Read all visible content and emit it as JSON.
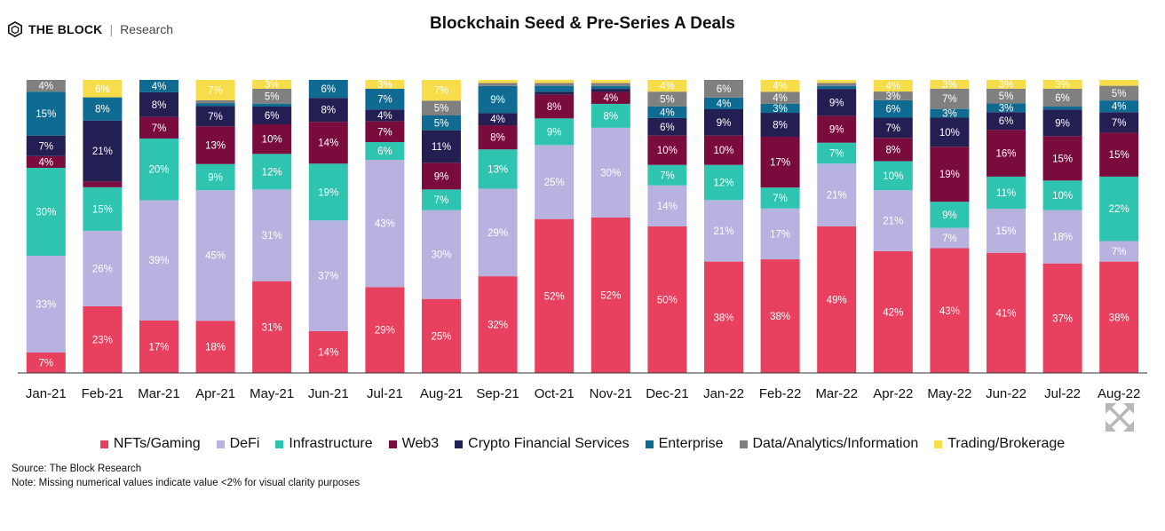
{
  "brand": {
    "name": "THE BLOCK",
    "separator": "|",
    "sub": "Research",
    "logo_icon": "hexagon-cube-icon"
  },
  "footer": {
    "source": "Source: The Block Research",
    "note": "Note: Missing numerical values indicate value <2% for visual clarity purposes"
  },
  "ui": {
    "expand_icon": "expand-arrows-icon"
  },
  "chart_data": {
    "type": "bar",
    "stacked": true,
    "normalized": true,
    "title": "Blockchain Seed & Pre-Series A Deals",
    "xlabel": "",
    "ylabel": "",
    "ylim": [
      0,
      100
    ],
    "legend_position": "bottom",
    "categories": [
      "Jan-21",
      "Feb-21",
      "Mar-21",
      "Apr-21",
      "May-21",
      "Jun-21",
      "Jul-21",
      "Aug-21",
      "Sep-21",
      "Oct-21",
      "Nov-21",
      "Dec-21",
      "Jan-22",
      "Feb-22",
      "Mar-22",
      "Apr-22",
      "May-22",
      "Jun-22",
      "Jul-22",
      "Aug-22"
    ],
    "series": [
      {
        "name": "NFTs/Gaming",
        "color": "#e8405f",
        "values": [
          7,
          23,
          17,
          18,
          31,
          14,
          29,
          25,
          32,
          52,
          52,
          50,
          38,
          38,
          49,
          42,
          43,
          41,
          37,
          38
        ],
        "labels": [
          "7%",
          "23%",
          "17%",
          "18%",
          "31%",
          "14%",
          "29%",
          "25%",
          "32%",
          "52%",
          "52%",
          "50%",
          "38%",
          "38%",
          "49%",
          "42%",
          "43%",
          "41%",
          "37%",
          "38%"
        ]
      },
      {
        "name": "DeFi",
        "color": "#b8b2e0",
        "values": [
          33,
          26,
          39,
          45,
          31,
          37,
          43,
          30,
          29,
          25,
          30,
          14,
          21,
          17,
          21,
          21,
          7,
          15,
          18,
          7
        ],
        "labels": [
          "33%",
          "26%",
          "39%",
          "45%",
          "31%",
          "37%",
          "43%",
          "30%",
          "29%",
          "25%",
          "30%",
          "14%",
          "21%",
          "17%",
          "21%",
          "21%",
          "7%",
          "15%",
          "18%",
          "7%"
        ]
      },
      {
        "name": "Infrastructure",
        "color": "#2ec4b0",
        "values": [
          30,
          15,
          20,
          9,
          12,
          19,
          6,
          7,
          13,
          9,
          8,
          7,
          12,
          7,
          7,
          10,
          9,
          11,
          10,
          22
        ],
        "labels": [
          "30%",
          "15%",
          "20%",
          "9%",
          "12%",
          "19%",
          "6%",
          "7%",
          "13%",
          "9%",
          "8%",
          "7%",
          "12%",
          "7%",
          "7%",
          "10%",
          "9%",
          "11%",
          "10%",
          "22%"
        ]
      },
      {
        "name": "Web3",
        "color": "#7a0b3d",
        "values": [
          4,
          2,
          7,
          13,
          10,
          14,
          7,
          9,
          8,
          8,
          4,
          10,
          10,
          17,
          9,
          8,
          19,
          16,
          15,
          15
        ],
        "labels": [
          "4%",
          "",
          "7%",
          "13%",
          "10%",
          "14%",
          "7%",
          "9%",
          "8%",
          "8%",
          "4%",
          "10%",
          "10%",
          "17%",
          "9%",
          "8%",
          "19%",
          "16%",
          "15%",
          "15%"
        ]
      },
      {
        "name": "Crypto Financial Services",
        "color": "#231f52",
        "values": [
          7,
          21,
          8,
          7,
          6,
          8,
          4,
          11,
          4,
          1,
          1,
          6,
          9,
          8,
          9,
          7,
          10,
          6,
          9,
          7
        ],
        "labels": [
          "7%",
          "21%",
          "8%",
          "7%",
          "6%",
          "8%",
          "4%",
          "11%",
          "4%",
          "",
          "",
          "6%",
          "9%",
          "8%",
          "9%",
          "7%",
          "10%",
          "6%",
          "9%",
          "7%"
        ]
      },
      {
        "name": "Enterprise",
        "color": "#0f6b91",
        "values": [
          15,
          8,
          4,
          1,
          1,
          6,
          7,
          5,
          9,
          2,
          1,
          4,
          4,
          3,
          1,
          6,
          3,
          3,
          1,
          4
        ],
        "labels": [
          "15%",
          "8%",
          "4%",
          "",
          "",
          "6%",
          "7%",
          "5%",
          "9%",
          "",
          "",
          "4%",
          "4%",
          "3%",
          "",
          "6%",
          "3%",
          "3%",
          "",
          "4%"
        ]
      },
      {
        "name": "Data/Analytics/Information",
        "color": "#808080",
        "values": [
          4,
          0,
          0,
          1,
          5,
          0,
          0,
          5,
          1,
          1,
          1,
          5,
          6,
          4,
          1,
          3,
          7,
          5,
          6,
          5
        ],
        "labels": [
          "4%",
          "",
          "",
          "",
          "5%",
          "",
          "",
          "5%",
          "",
          "",
          "",
          "5%",
          "6%",
          "4%",
          "",
          "3%",
          "7%",
          "5%",
          "6%",
          "5%"
        ]
      },
      {
        "name": "Trading/Brokerage",
        "color": "#f8dd4a",
        "values": [
          0,
          6,
          0,
          7,
          3,
          0,
          3,
          7,
          1,
          1,
          1,
          4,
          0,
          4,
          1,
          4,
          3,
          3,
          3,
          2
        ],
        "labels": [
          "",
          "6%",
          "",
          "7%",
          "3%",
          "",
          "3%",
          "7%",
          "",
          "",
          "",
          "4%",
          "",
          "4%",
          "",
          "4%",
          "3%",
          "3%",
          "3%",
          ""
        ]
      }
    ]
  }
}
